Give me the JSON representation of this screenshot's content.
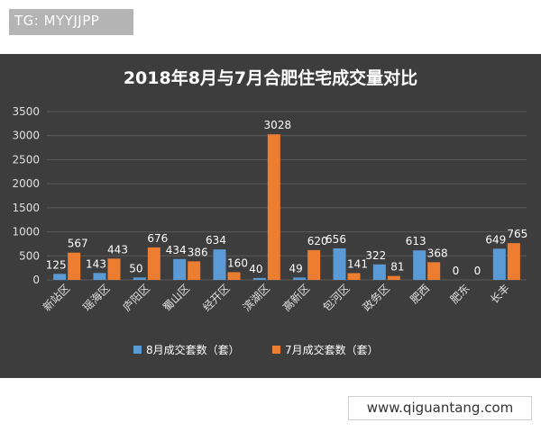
{
  "overlay": {
    "tag_text": "TG: MYYJJPP",
    "watermark_text": "www.qiguantang.com"
  },
  "colors": {
    "panel_bg": "#3d3d3d",
    "series_aug": "#5b9bd5",
    "series_jul": "#ed7d31",
    "text": "#ffffff",
    "axis_text": "#e0e0e0",
    "grid": "#595959"
  },
  "chart_data": {
    "type": "bar",
    "title": "2018年8月与7月合肥住宅成交量对比",
    "categories": [
      "新站区",
      "瑶海区",
      "庐阳区",
      "蜀山区",
      "经开区",
      "滨湖区",
      "高新区",
      "包河区",
      "政务区",
      "肥西",
      "肥东",
      "长丰"
    ],
    "series": [
      {
        "name": "8月成交套数（套）",
        "values": [
          125,
          143,
          50,
          434,
          634,
          40,
          49,
          656,
          322,
          613,
          0,
          649
        ]
      },
      {
        "name": "7月成交套数（套）",
        "values": [
          567,
          443,
          676,
          386,
          160,
          3028,
          620,
          141,
          81,
          368,
          0,
          765
        ]
      }
    ],
    "yticks": [
      "0",
      "500",
      "1000",
      "1500",
      "2000",
      "2500",
      "3000",
      "3500"
    ],
    "ylim": [
      0,
      3500
    ],
    "grid": true,
    "legend_position": "bottom",
    "xlabel": "",
    "ylabel": ""
  }
}
